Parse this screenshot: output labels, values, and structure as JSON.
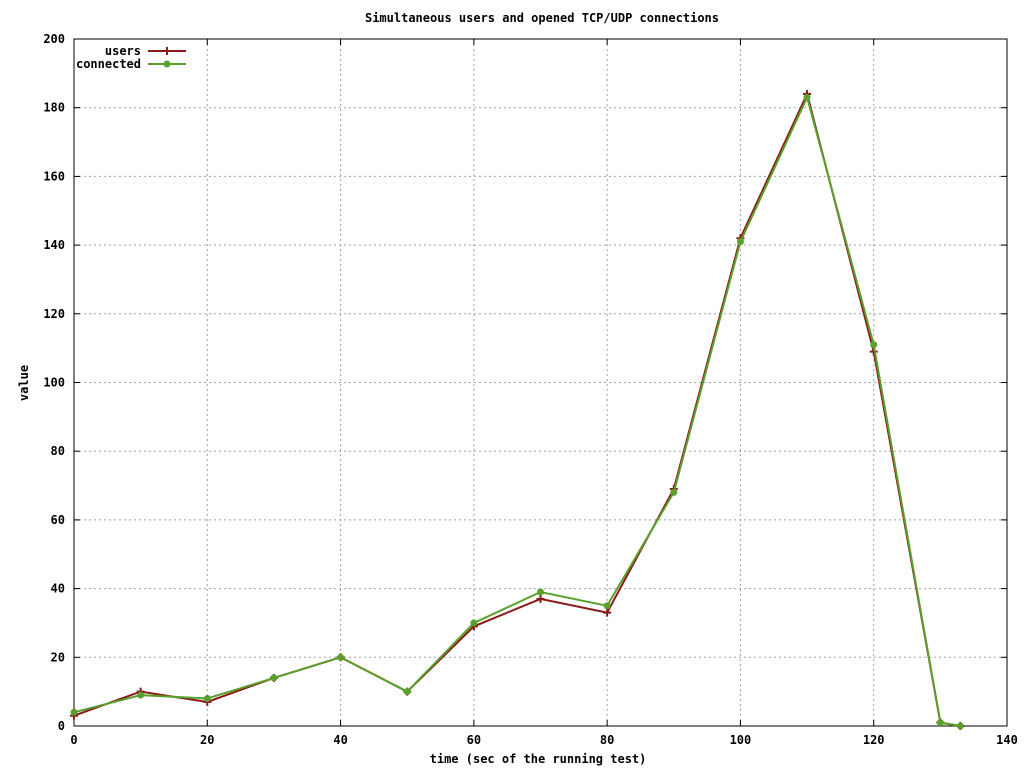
{
  "chart_data": {
    "type": "line",
    "title": "Simultaneous users and opened TCP/UDP connections",
    "xlabel": "time (sec of the running test)",
    "ylabel": "value",
    "xlim": [
      0,
      140
    ],
    "ylim": [
      0,
      200
    ],
    "x_ticks": [
      0,
      20,
      40,
      60,
      80,
      100,
      120,
      140
    ],
    "y_ticks": [
      0,
      20,
      40,
      60,
      80,
      100,
      120,
      140,
      160,
      180,
      200
    ],
    "grid": true,
    "legend_position": "top-left",
    "series": [
      {
        "name": "users",
        "color": "#8b1a1a",
        "marker": "plus",
        "x": [
          0,
          10,
          20,
          30,
          40,
          50,
          60,
          70,
          80,
          90,
          100,
          110,
          120,
          130,
          133
        ],
        "y": [
          3,
          10,
          7,
          14,
          20,
          10,
          29,
          37,
          33,
          69,
          142,
          184,
          109,
          1,
          0
        ]
      },
      {
        "name": "connected",
        "color": "#5aa02c",
        "marker": "dot",
        "x": [
          0,
          10,
          20,
          30,
          40,
          50,
          60,
          70,
          80,
          90,
          100,
          110,
          120,
          130,
          133
        ],
        "y": [
          4,
          9,
          8,
          14,
          20,
          10,
          30,
          39,
          35,
          68,
          141,
          183,
          111,
          1,
          0
        ]
      }
    ]
  }
}
